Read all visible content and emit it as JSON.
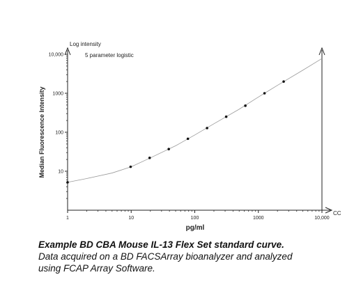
{
  "chart_data": {
    "type": "scatter",
    "title": "Log intensity",
    "subtitle": "5 parameter logistic",
    "y_label": "Median Fluorescence Intensity",
    "x_label": "pg/ml",
    "x_axis_end_label": "CC",
    "log_x": true,
    "log_y": true,
    "xlim": [
      1,
      10000
    ],
    "ylim": [
      1,
      10000
    ],
    "xticks": [
      1,
      10,
      100,
      1000,
      {
        "value": 10000,
        "label": "10,000"
      }
    ],
    "yticks": [
      10,
      100,
      1000,
      {
        "value": 10000,
        "label": "10,000"
      }
    ],
    "points": {
      "color": "#111111",
      "x": [
        1,
        9.8,
        19.5,
        39,
        78,
        156,
        312,
        625,
        1250,
        2500
      ],
      "y": [
        5.2,
        13,
        22,
        37,
        68,
        128,
        250,
        480,
        1000,
        2000
      ]
    },
    "curve": {
      "color": "#999999",
      "x": [
        1,
        2,
        5,
        10,
        20,
        50,
        100,
        200,
        500,
        1000,
        2000,
        5000,
        10000
      ],
      "y": [
        5.2,
        6.5,
        9,
        13,
        22,
        45,
        85,
        165,
        390,
        800,
        1600,
        3900,
        7800
      ]
    }
  },
  "caption": {
    "title": "Example BD CBA Mouse IL-13 Flex Set standard curve.",
    "lines": [
      "Data acquired on a BD FACSArray bioanalyzer and analyzed",
      "using FCAP Array Software."
    ]
  }
}
